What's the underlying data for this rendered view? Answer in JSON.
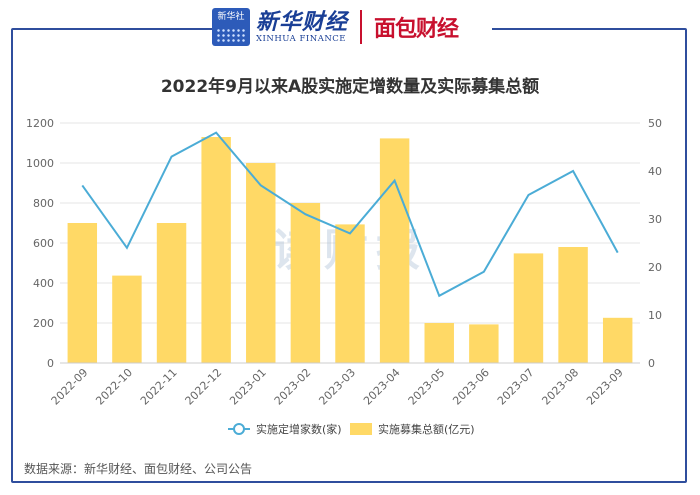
{
  "header": {
    "logo_square_text": "新华社",
    "brand_cn": "新华财经",
    "brand_en": "XINHUA FINANCE",
    "second_brand": "面包财经"
  },
  "watermark": "读财报",
  "source_note": "数据来源：新华财经、面包财经、公司公告",
  "colors": {
    "bar": "#ffd966",
    "line": "#4bacd6",
    "frame": "#2f4e9d",
    "brand_red": "#c8102e"
  },
  "chart_data": {
    "type": "bar",
    "title": "2022年9月以来A股实施定增数量及实际募集总额",
    "categories": [
      "2022-09",
      "2022-10",
      "2022-11",
      "2022-12",
      "2023-01",
      "2023-02",
      "2023-03",
      "2023-04",
      "2023-05",
      "2023-06",
      "2023-07",
      "2023-08",
      "2023-09"
    ],
    "series": [
      {
        "name": "实施募集总额(亿元)",
        "type": "bar",
        "axis": "left",
        "values": [
          700,
          437,
          700,
          1130,
          1000,
          800,
          693,
          1123,
          200,
          193,
          548,
          580,
          226
        ]
      },
      {
        "name": "实施定增家数(家)",
        "type": "line",
        "axis": "right",
        "values": [
          37,
          24,
          43,
          48,
          37,
          31,
          27,
          38,
          14,
          19,
          35,
          40,
          23
        ]
      }
    ],
    "ylim_left": [
      0,
      1200
    ],
    "yticks_left": [
      0,
      200,
      400,
      600,
      800,
      1000,
      1200
    ],
    "ylim_right": [
      0,
      50
    ],
    "yticks_right": [
      0,
      10,
      20,
      30,
      40,
      50
    ],
    "grid": true,
    "legend_position": "bottom"
  }
}
